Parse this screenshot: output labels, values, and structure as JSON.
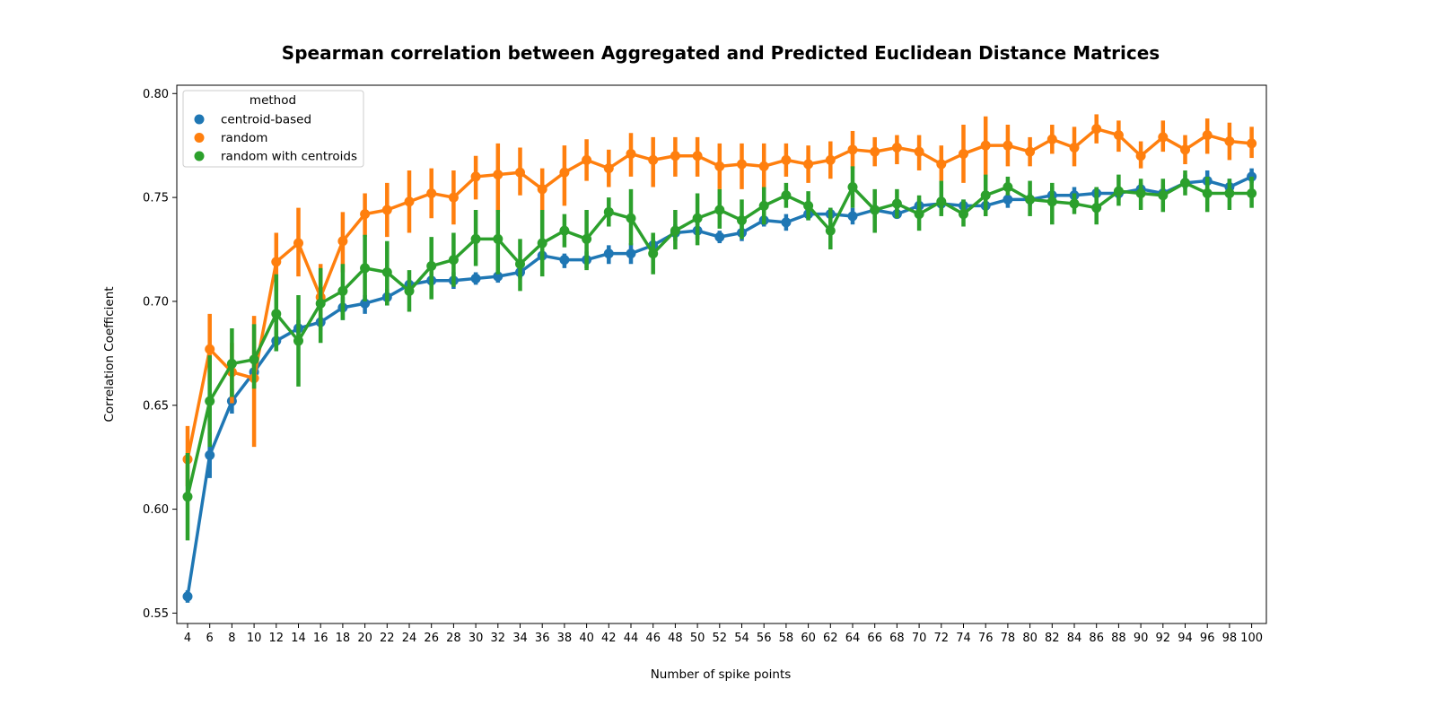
{
  "chart_data": {
    "type": "line",
    "title": "Spearman correlation between Aggregated and Predicted Euclidean Distance Matrices",
    "xlabel": "Number of spike points",
    "ylabel": "Correlation Coefficient",
    "ylim": [
      0.545,
      0.804
    ],
    "yticks": [
      0.55,
      0.6,
      0.65,
      0.7,
      0.75,
      0.8
    ],
    "ytick_labels": [
      "0.55",
      "0.60",
      "0.65",
      "0.70",
      "0.75",
      "0.80"
    ],
    "categories": [
      "4",
      "6",
      "8",
      "10",
      "12",
      "14",
      "16",
      "18",
      "20",
      "22",
      "24",
      "26",
      "28",
      "30",
      "32",
      "34",
      "36",
      "38",
      "40",
      "42",
      "44",
      "46",
      "48",
      "50",
      "52",
      "54",
      "56",
      "58",
      "60",
      "62",
      "64",
      "66",
      "68",
      "70",
      "72",
      "74",
      "76",
      "78",
      "80",
      "82",
      "84",
      "86",
      "88",
      "90",
      "92",
      "94",
      "96",
      "98",
      "100"
    ],
    "legend": {
      "title": "method",
      "placement": "upper-left"
    },
    "grid": false,
    "series": [
      {
        "name": "centroid-based",
        "color": "#1f77b4",
        "values": [
          0.558,
          0.626,
          0.652,
          0.666,
          0.681,
          0.687,
          0.69,
          0.697,
          0.699,
          0.702,
          0.708,
          0.71,
          0.71,
          0.711,
          0.712,
          0.714,
          0.722,
          0.72,
          0.72,
          0.723,
          0.723,
          0.727,
          0.733,
          0.734,
          0.731,
          0.733,
          0.739,
          0.738,
          0.742,
          0.742,
          0.741,
          0.744,
          0.742,
          0.746,
          0.747,
          0.746,
          0.746,
          0.749,
          0.749,
          0.751,
          0.751,
          0.752,
          0.752,
          0.754,
          0.752,
          0.757,
          0.758,
          0.755,
          0.76
        ],
        "ci_low": [
          0.555,
          0.615,
          0.646,
          0.661,
          0.676,
          0.683,
          0.686,
          0.691,
          0.694,
          0.698,
          0.706,
          0.707,
          0.706,
          0.708,
          0.709,
          0.711,
          0.72,
          0.716,
          0.716,
          0.718,
          0.718,
          0.722,
          0.729,
          0.73,
          0.728,
          0.729,
          0.736,
          0.734,
          0.739,
          0.738,
          0.737,
          0.74,
          0.74,
          0.743,
          0.744,
          0.743,
          0.743,
          0.745,
          0.746,
          0.747,
          0.747,
          0.749,
          0.749,
          0.751,
          0.749,
          0.754,
          0.754,
          0.75,
          0.757
        ],
        "ci_high": [
          0.561,
          0.637,
          0.658,
          0.671,
          0.686,
          0.691,
          0.694,
          0.702,
          0.703,
          0.706,
          0.71,
          0.713,
          0.714,
          0.714,
          0.715,
          0.717,
          0.725,
          0.723,
          0.724,
          0.727,
          0.728,
          0.731,
          0.737,
          0.738,
          0.734,
          0.737,
          0.742,
          0.742,
          0.745,
          0.745,
          0.745,
          0.747,
          0.745,
          0.749,
          0.751,
          0.749,
          0.749,
          0.752,
          0.752,
          0.755,
          0.755,
          0.755,
          0.755,
          0.757,
          0.756,
          0.761,
          0.763,
          0.759,
          0.764
        ]
      },
      {
        "name": "random",
        "color": "#ff7f0e",
        "values": [
          0.624,
          0.677,
          0.666,
          0.663,
          0.719,
          0.728,
          0.702,
          0.729,
          0.742,
          0.744,
          0.748,
          0.752,
          0.75,
          0.76,
          0.761,
          0.762,
          0.754,
          0.762,
          0.768,
          0.764,
          0.771,
          0.768,
          0.77,
          0.77,
          0.765,
          0.766,
          0.765,
          0.768,
          0.766,
          0.768,
          0.773,
          0.772,
          0.774,
          0.772,
          0.766,
          0.771,
          0.775,
          0.775,
          0.772,
          0.778,
          0.774,
          0.783,
          0.78,
          0.77,
          0.779,
          0.773,
          0.78,
          0.777,
          0.776
        ],
        "ci_low": [
          0.611,
          0.66,
          0.651,
          0.63,
          0.705,
          0.712,
          0.688,
          0.714,
          0.731,
          0.731,
          0.733,
          0.74,
          0.737,
          0.749,
          0.743,
          0.751,
          0.744,
          0.746,
          0.758,
          0.755,
          0.76,
          0.755,
          0.76,
          0.76,
          0.754,
          0.754,
          0.754,
          0.76,
          0.757,
          0.759,
          0.764,
          0.765,
          0.766,
          0.763,
          0.758,
          0.757,
          0.76,
          0.765,
          0.765,
          0.771,
          0.765,
          0.776,
          0.772,
          0.764,
          0.772,
          0.766,
          0.771,
          0.768,
          0.769
        ],
        "ci_high": [
          0.64,
          0.694,
          0.68,
          0.693,
          0.733,
          0.745,
          0.718,
          0.743,
          0.752,
          0.757,
          0.763,
          0.764,
          0.763,
          0.77,
          0.776,
          0.774,
          0.764,
          0.775,
          0.778,
          0.773,
          0.781,
          0.779,
          0.779,
          0.779,
          0.776,
          0.776,
          0.776,
          0.776,
          0.775,
          0.777,
          0.782,
          0.779,
          0.78,
          0.78,
          0.775,
          0.785,
          0.789,
          0.785,
          0.779,
          0.785,
          0.784,
          0.79,
          0.787,
          0.777,
          0.787,
          0.78,
          0.788,
          0.786,
          0.784
        ]
      },
      {
        "name": "random with centroids",
        "color": "#2ca02c",
        "values": [
          0.606,
          0.652,
          0.67,
          0.672,
          0.694,
          0.681,
          0.699,
          0.705,
          0.716,
          0.714,
          0.705,
          0.717,
          0.72,
          0.73,
          0.73,
          0.718,
          0.728,
          0.734,
          0.73,
          0.743,
          0.74,
          0.723,
          0.734,
          0.74,
          0.744,
          0.739,
          0.746,
          0.751,
          0.746,
          0.734,
          0.755,
          0.744,
          0.747,
          0.742,
          0.748,
          0.742,
          0.751,
          0.755,
          0.749,
          0.748,
          0.747,
          0.745,
          0.753,
          0.752,
          0.751,
          0.757,
          0.752,
          0.752,
          0.752
        ],
        "ci_low": [
          0.585,
          0.63,
          0.654,
          0.658,
          0.676,
          0.659,
          0.68,
          0.691,
          0.7,
          0.698,
          0.695,
          0.701,
          0.707,
          0.717,
          0.713,
          0.705,
          0.712,
          0.726,
          0.715,
          0.736,
          0.727,
          0.713,
          0.725,
          0.727,
          0.735,
          0.73,
          0.737,
          0.745,
          0.739,
          0.725,
          0.745,
          0.733,
          0.74,
          0.734,
          0.741,
          0.736,
          0.741,
          0.751,
          0.741,
          0.737,
          0.742,
          0.737,
          0.746,
          0.744,
          0.743,
          0.751,
          0.743,
          0.744,
          0.745
        ],
        "ci_high": [
          0.627,
          0.674,
          0.687,
          0.689,
          0.713,
          0.703,
          0.716,
          0.718,
          0.732,
          0.729,
          0.715,
          0.731,
          0.733,
          0.744,
          0.744,
          0.73,
          0.744,
          0.742,
          0.744,
          0.75,
          0.754,
          0.733,
          0.744,
          0.752,
          0.754,
          0.749,
          0.755,
          0.757,
          0.753,
          0.745,
          0.765,
          0.754,
          0.754,
          0.751,
          0.758,
          0.749,
          0.761,
          0.76,
          0.758,
          0.757,
          0.752,
          0.755,
          0.761,
          0.759,
          0.759,
          0.763,
          0.76,
          0.759,
          0.76
        ]
      }
    ]
  }
}
